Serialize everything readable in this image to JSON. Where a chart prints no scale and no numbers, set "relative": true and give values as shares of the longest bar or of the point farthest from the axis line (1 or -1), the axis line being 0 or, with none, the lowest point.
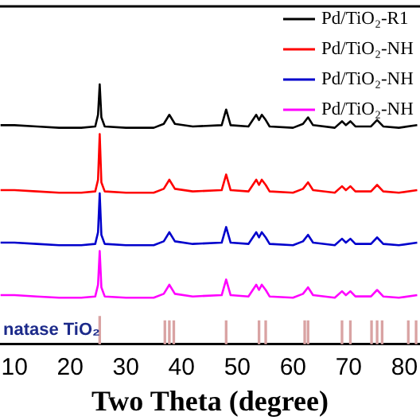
{
  "chart_data": {
    "type": "line",
    "relative": true,
    "xlabel": "Two Theta (degree)",
    "xlim": [
      7.4,
      82.8
    ],
    "xticks": [
      10,
      20,
      30,
      40,
      50,
      60,
      70,
      80
    ],
    "legend": "top right",
    "grid": false,
    "marker": "none",
    "line_style": "solid",
    "x": [
      7.5,
      10,
      14,
      18,
      22,
      24.5,
      25.0,
      25.3,
      25.6,
      26.2,
      30,
      35,
      36.8,
      37.8,
      38.8,
      42,
      47.2,
      48.0,
      48.8,
      52,
      53.4,
      53.9,
      54.4,
      55.1,
      55.8,
      60,
      61.8,
      62.7,
      63.6,
      67.5,
      68.8,
      69.5,
      70.3,
      71.2,
      74,
      75.1,
      76.2,
      79,
      82.3
    ],
    "annotations": [
      "natase TiO₂"
    ],
    "series": [
      {
        "name": "Pd/TiO₂-R1",
        "color": "#000000",
        "values": [
          0.843,
          0.843,
          0.838,
          0.833,
          0.833,
          0.838,
          0.883,
          1.0,
          0.873,
          0.838,
          0.833,
          0.833,
          0.848,
          0.883,
          0.848,
          0.838,
          0.843,
          0.903,
          0.843,
          0.838,
          0.883,
          0.863,
          0.883,
          0.863,
          0.838,
          0.833,
          0.848,
          0.873,
          0.843,
          0.833,
          0.858,
          0.843,
          0.858,
          0.838,
          0.838,
          0.863,
          0.838,
          0.833,
          0.843
        ]
      },
      {
        "name": "Pd/TiO₂-NH",
        "color": "#ff0000",
        "values": [
          0.593,
          0.593,
          0.588,
          0.583,
          0.583,
          0.588,
          0.633,
          0.809,
          0.623,
          0.588,
          0.583,
          0.583,
          0.598,
          0.633,
          0.598,
          0.588,
          0.593,
          0.653,
          0.593,
          0.588,
          0.633,
          0.613,
          0.633,
          0.613,
          0.588,
          0.583,
          0.598,
          0.623,
          0.593,
          0.583,
          0.608,
          0.593,
          0.608,
          0.588,
          0.588,
          0.613,
          0.588,
          0.583,
          0.593
        ]
      },
      {
        "name": "Pd/TiO₂-NH",
        "color": "#0000cc",
        "values": [
          0.391,
          0.391,
          0.386,
          0.381,
          0.381,
          0.386,
          0.431,
          0.581,
          0.421,
          0.386,
          0.381,
          0.381,
          0.396,
          0.431,
          0.396,
          0.386,
          0.391,
          0.451,
          0.391,
          0.386,
          0.431,
          0.411,
          0.431,
          0.411,
          0.386,
          0.381,
          0.396,
          0.421,
          0.391,
          0.381,
          0.406,
          0.391,
          0.406,
          0.386,
          0.386,
          0.411,
          0.386,
          0.381,
          0.391
        ]
      },
      {
        "name": "Pd/TiO₂-NH",
        "color": "#ff00ff",
        "values": [
          0.189,
          0.189,
          0.184,
          0.179,
          0.179,
          0.184,
          0.229,
          0.359,
          0.219,
          0.184,
          0.179,
          0.179,
          0.194,
          0.229,
          0.194,
          0.184,
          0.189,
          0.249,
          0.189,
          0.184,
          0.229,
          0.209,
          0.229,
          0.209,
          0.184,
          0.179,
          0.194,
          0.219,
          0.189,
          0.179,
          0.204,
          0.189,
          0.204,
          0.184,
          0.184,
          0.209,
          0.184,
          0.179,
          0.189
        ]
      },
      {
        "type": "bar",
        "color": "#d9a3a3",
        "x": [
          25.3,
          37.0,
          37.8,
          38.6,
          48.0,
          53.9,
          55.1,
          62.1,
          62.7,
          68.8,
          70.3,
          74.1,
          75.1,
          76.0,
          80.7,
          82.1
        ],
        "values": [
          0.107,
          0.09,
          0.09,
          0.09,
          0.09,
          0.09,
          0.09,
          0.09,
          0.09,
          0.09,
          0.09,
          0.09,
          0.09,
          0.09,
          0.09,
          0.09
        ]
      }
    ]
  }
}
